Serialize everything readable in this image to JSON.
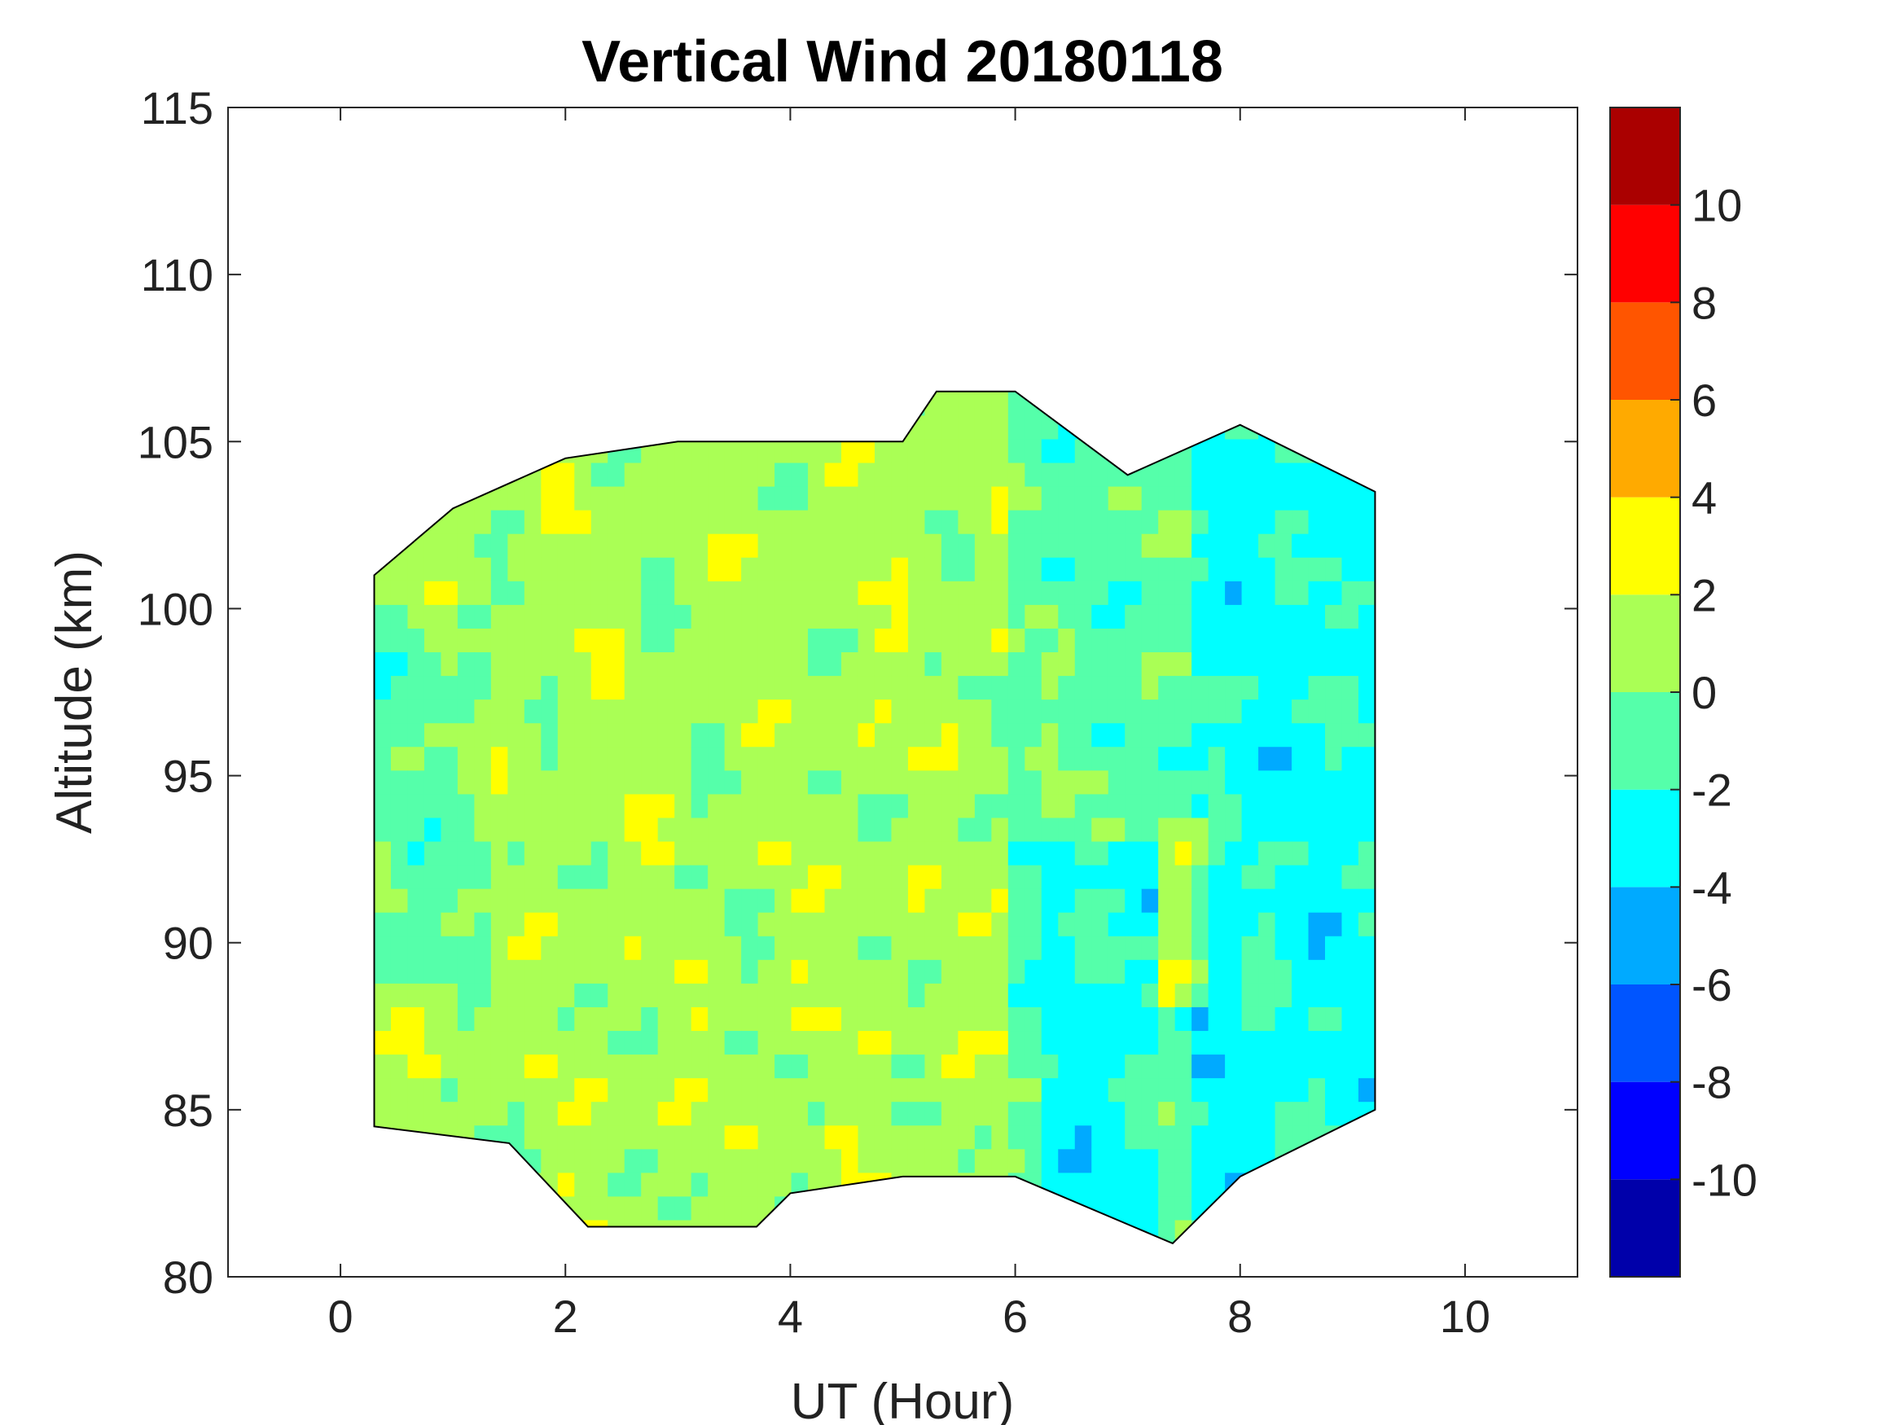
{
  "chart_data": {
    "type": "heatmap",
    "title": "Vertical Wind 20180118",
    "xlabel": "UT (Hour)",
    "ylabel": "Altitude (km)",
    "xlim": [
      -1,
      11
    ],
    "ylim": [
      80,
      115
    ],
    "xticks": [
      "0",
      "2",
      "4",
      "6",
      "8",
      "10"
    ],
    "yticks": [
      "80",
      "85",
      "90",
      "95",
      "100",
      "105",
      "110",
      "115"
    ],
    "grid": false,
    "colorbar": {
      "range": [
        -12,
        12
      ],
      "ticks": [
        "-10",
        "-8",
        "-6",
        "-4",
        "-2",
        "0",
        "2",
        "4",
        "6",
        "8",
        "10"
      ],
      "levels": [
        -12,
        -10,
        -8,
        -6,
        -4,
        -2,
        0,
        2,
        4,
        6,
        8,
        10,
        12
      ],
      "colors": [
        "#0000aa",
        "#0000ff",
        "#0055ff",
        "#00aaff",
        "#00ffff",
        "#55ffaa",
        "#aaff55",
        "#ffff00",
        "#ffaa00",
        "#ff5500",
        "#ff0000",
        "#aa0000"
      ]
    },
    "data_region": {
      "x_range": [
        0.3,
        9.2
      ],
      "top_boundary": [
        [
          0.3,
          101
        ],
        [
          1.0,
          103
        ],
        [
          2.0,
          104.5
        ],
        [
          3.0,
          105
        ],
        [
          4.0,
          105
        ],
        [
          5.0,
          105
        ],
        [
          5.3,
          106.5
        ],
        [
          6.0,
          106.5
        ],
        [
          7.0,
          104
        ],
        [
          8.0,
          105.5
        ],
        [
          9.2,
          103.5
        ]
      ],
      "bottom_boundary": [
        [
          9.2,
          85
        ],
        [
          8.0,
          83
        ],
        [
          7.4,
          81
        ],
        [
          6.0,
          83
        ],
        [
          5.0,
          83
        ],
        [
          4.0,
          82.5
        ],
        [
          3.7,
          81.5
        ],
        [
          2.2,
          81.5
        ],
        [
          1.5,
          84
        ],
        [
          0.3,
          84.5
        ]
      ]
    },
    "regions": [
      {
        "x_range": [
          0.3,
          6.0
        ],
        "dominant_value_range": [
          0,
          2
        ],
        "note": "mostly 0 to 2 m/s with scattered 2 to 4 and -2 to 0 patches"
      },
      {
        "x_range": [
          6.0,
          7.6
        ],
        "dominant_value_range": [
          -2,
          0
        ],
        "note": "-2 to 0 with -4 to -2 bands at lower altitudes"
      },
      {
        "x_range": [
          7.6,
          9.2
        ],
        "dominant_value_range": [
          -4,
          -2
        ],
        "note": "-4 to -2 dominant with -2 to 0 patches"
      }
    ]
  },
  "colors": {
    "axis": "#262626",
    "contour_line": "#000000",
    "background": "#ffffff"
  }
}
